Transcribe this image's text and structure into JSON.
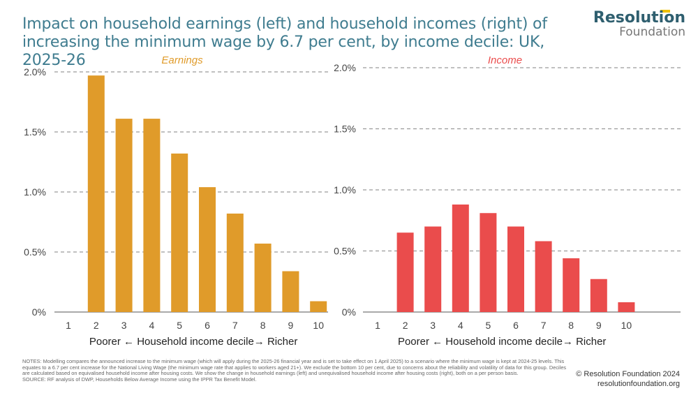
{
  "title": "Impact on household earnings (left) and household incomes (right) of increasing the minimum wage by 6.7 per cent, by income decile: UK, 2025-26",
  "logo": {
    "line1": "Resolution",
    "line2": "Foundation",
    "accent_color": "#f0c000"
  },
  "notes": {
    "text": "NOTES: Modelling compares the announced increase to the minimum wage (which will apply during the 2025-26 financial year and is set to take effect on 1 April 2025) to a scenario where the minimum wage is kept at 2024-25 levels. This equates to a 6.7 per cent increase for the National Living Wage (the minimum wage rate that applies to workers aged 21+). We exclude the bottom 10 per cent, due to concerns about the reliability and volatility of data for this group. Deciles are calculated based on equivalised household income after housing costs. We show the change in household earnings (left) and unequivalised household income after housing costs (right), both on a per person basis.",
    "source": "SOURCE: RF analysis of DWP, Households Below Average Income using the IPPR Tax Benefit Model."
  },
  "copyright": {
    "line1": "© Resolution Foundation 2024",
    "line2": "resolutionfoundation.org"
  },
  "chart_data": [
    {
      "type": "bar",
      "series_label": "Earnings",
      "color": "#e09b2a",
      "categories": [
        "1",
        "2",
        "3",
        "4",
        "5",
        "6",
        "7",
        "8",
        "9",
        "10"
      ],
      "values": [
        null,
        1.97,
        1.61,
        1.61,
        1.32,
        1.04,
        0.82,
        0.57,
        0.34,
        0.09
      ],
      "xlabel": "Poorer ← Household income decile→ Richer",
      "ylim": [
        0,
        2.0
      ],
      "yticks": [
        "0%",
        "0.5%",
        "1.0%",
        "1.5%",
        "2.0%"
      ],
      "grid": true
    },
    {
      "type": "bar",
      "series_label": "Income",
      "color": "#ea4c4c",
      "categories": [
        "1",
        "2",
        "3",
        "4",
        "5",
        "6",
        "7",
        "8",
        "9",
        "10"
      ],
      "values": [
        null,
        0.65,
        0.7,
        0.88,
        0.81,
        0.7,
        0.58,
        0.44,
        0.27,
        0.08
      ],
      "xlabel": "Poorer ← Household income decile→ Richer",
      "ylim": [
        0,
        2.0
      ],
      "yticks": [
        "0%",
        "0.5%",
        "1.0%",
        "1.5%",
        "2.0%"
      ],
      "grid": true
    }
  ]
}
